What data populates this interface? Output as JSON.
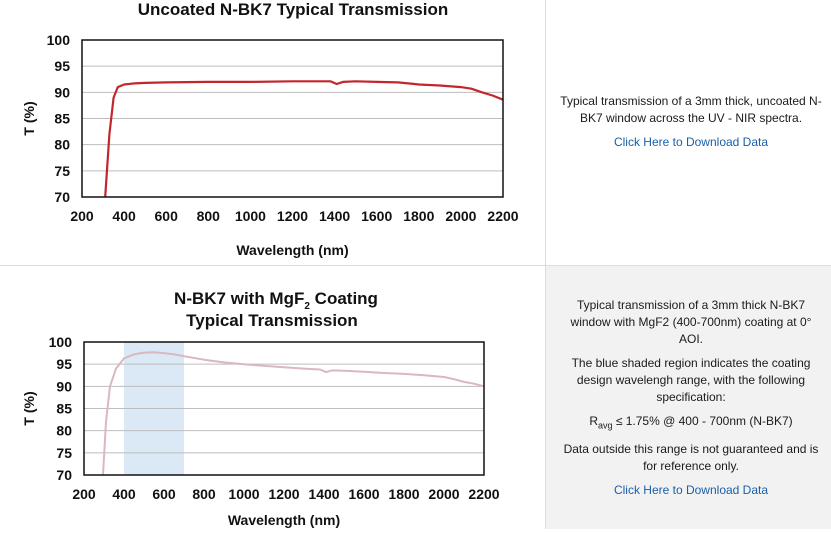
{
  "chart_data": [
    {
      "type": "line",
      "title": "Uncoated N-BK7 Typical Transmission",
      "xlabel": "Wavelength (nm)",
      "ylabel": "T (%)",
      "xlim": [
        200,
        2200
      ],
      "ylim": [
        70,
        100
      ],
      "xticks": [
        "200",
        "400",
        "600",
        "800",
        "1000",
        "1200",
        "1400",
        "1600",
        "1800",
        "2000",
        "2200"
      ],
      "yticks": [
        "70",
        "75",
        "80",
        "85",
        "90",
        "95",
        "100"
      ],
      "grid": true,
      "color": "#c1272d",
      "series": [
        {
          "x": [
            310,
            330,
            350,
            370,
            400,
            450,
            500,
            600,
            800,
            1000,
            1200,
            1380,
            1410,
            1440,
            1500,
            1600,
            1700,
            1780,
            1800,
            1900,
            2000,
            2050,
            2100,
            2150,
            2200
          ],
          "y": [
            70,
            82,
            89,
            91,
            91.5,
            91.7,
            91.8,
            91.9,
            92.0,
            92.0,
            92.1,
            92.1,
            91.6,
            92.0,
            92.1,
            92.0,
            91.9,
            91.6,
            91.5,
            91.3,
            91.0,
            90.7,
            90.0,
            89.4,
            88.6
          ]
        }
      ]
    },
    {
      "type": "line",
      "title": "N-BK7 with MgF",
      "title_sub": "2",
      "title_tail": " Coating",
      "title2": "Typical Transmission",
      "xlabel": "Wavelength (nm)",
      "ylabel": "T (%)",
      "xlim": [
        200,
        2200
      ],
      "ylim": [
        70,
        100
      ],
      "xticks": [
        "200",
        "400",
        "600",
        "800",
        "1000",
        "1200",
        "1400",
        "1600",
        "1800",
        "2000",
        "2200"
      ],
      "yticks": [
        "70",
        "75",
        "80",
        "85",
        "90",
        "95",
        "100"
      ],
      "grid": true,
      "color": "#d9b8bf",
      "shade_range": [
        400,
        700
      ],
      "shade_color": "#dbe8f5",
      "series": [
        {
          "x": [
            295,
            310,
            330,
            360,
            400,
            450,
            500,
            550,
            600,
            650,
            700,
            800,
            900,
            1000,
            1100,
            1200,
            1300,
            1380,
            1410,
            1440,
            1500,
            1600,
            1700,
            1800,
            1900,
            2000,
            2050,
            2100,
            2150,
            2200
          ],
          "y": [
            70,
            82,
            90,
            94,
            96.3,
            97.2,
            97.6,
            97.7,
            97.5,
            97.2,
            96.8,
            96.0,
            95.4,
            95.0,
            94.6,
            94.3,
            94.0,
            93.8,
            93.2,
            93.6,
            93.5,
            93.3,
            93.0,
            92.8,
            92.5,
            92.1,
            91.6,
            91.0,
            90.6,
            90.0
          ]
        }
      ]
    }
  ],
  "panel1": {
    "description": "Typical transmission of a 3mm thick, uncoated N-BK7 window across the UV - NIR spectra.",
    "link": "Click Here to Download Data"
  },
  "panel2": {
    "desc1": "Typical transmission of a 3mm thick N-BK7 window with MgF2 (400-700nm) coating at 0° AOI.",
    "desc2": "The blue shaded region indicates the coating design wavelengh range, with the following specification:",
    "spec_r": "R",
    "spec_sub": "avg",
    "spec_tail": " ≤ 1.75% @ 400 - 700nm (N-BK7)",
    "desc3": "Data outside this range is not guaranteed and is for reference only.",
    "link": "Click Here to Download Data"
  }
}
